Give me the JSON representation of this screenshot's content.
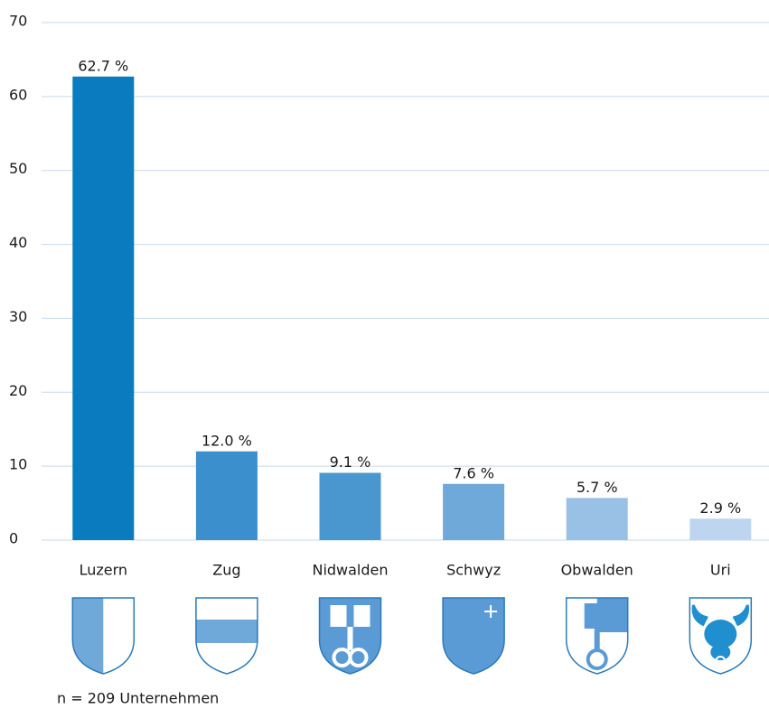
{
  "chart_data": {
    "type": "bar",
    "categories": [
      "Luzern",
      "Zug",
      "Nidwalden",
      "Schwyz",
      "Obwalden",
      "Uri"
    ],
    "values": [
      62.7,
      12.0,
      9.1,
      7.6,
      5.7,
      2.9
    ],
    "value_labels": [
      "62.7 %",
      "12.0 %",
      "9.1 %",
      "7.6 %",
      "5.7 %",
      "2.9 %"
    ],
    "colors": [
      "#0b7bbf",
      "#3a8fcc",
      "#4a97cf",
      "#6fa9d9",
      "#99c0e5",
      "#bdd5ef"
    ],
    "ylim": [
      0,
      70
    ],
    "yticks": [
      0,
      10,
      20,
      30,
      40,
      50,
      60,
      70
    ],
    "grid": true,
    "note": "n = 209 Unternehmen"
  }
}
